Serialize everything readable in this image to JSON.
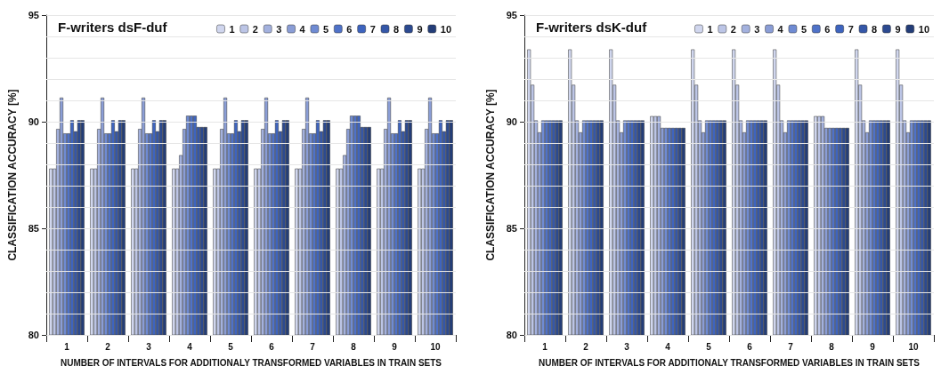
{
  "chart_data": [
    {
      "type": "bar",
      "title": "F-writers dsF-duf",
      "xlabel": "NUMBER OF INTERVALS FOR ADDITIONALY TRANSFORMED VARIABLES IN TRAIN SETS",
      "ylabel": "CLASSIFICATION ACCURACY [%]",
      "categories": [
        "1",
        "2",
        "3",
        "4",
        "5",
        "6",
        "7",
        "8",
        "9",
        "10"
      ],
      "ylim": [
        80,
        95
      ],
      "yticks": [
        80,
        {
          "value": 81,
          "label": null
        },
        {
          "value": 82,
          "label": null
        },
        {
          "value": 83,
          "label": null
        },
        {
          "value": 84,
          "label": null
        },
        85,
        {
          "value": 86,
          "label": null
        },
        {
          "value": 87,
          "label": null
        },
        {
          "value": 88,
          "label": null
        },
        {
          "value": 89,
          "label": null
        },
        90,
        {
          "value": 91,
          "label": null
        },
        {
          "value": 92,
          "label": null
        },
        {
          "value": 93,
          "label": null
        },
        {
          "value": 94,
          "label": null
        },
        95
      ],
      "grid": "y",
      "legend": "top right",
      "series": [
        {
          "name": "1",
          "color": "#d0d6ee",
          "values": [
            87.8,
            87.8,
            87.8,
            87.8,
            87.8,
            87.8,
            87.8,
            87.8,
            87.8,
            87.8
          ]
        },
        {
          "name": "2",
          "color": "#bcc5e6",
          "values": [
            87.8,
            87.8,
            87.8,
            87.8,
            87.8,
            87.8,
            87.8,
            87.8,
            87.8,
            87.8
          ]
        },
        {
          "name": "3",
          "color": "#a3b1de",
          "values": [
            89.66,
            89.66,
            89.66,
            88.43,
            89.66,
            89.66,
            89.66,
            88.43,
            89.66,
            89.66
          ]
        },
        {
          "name": "4",
          "color": "#8a9dd6",
          "values": [
            91.13,
            91.13,
            91.13,
            89.66,
            91.13,
            91.13,
            91.13,
            89.66,
            91.13,
            91.13
          ]
        },
        {
          "name": "5",
          "color": "#6f8bd3",
          "values": [
            89.45,
            89.45,
            89.45,
            90.28,
            89.45,
            89.45,
            89.45,
            90.28,
            89.45,
            89.45
          ]
        },
        {
          "name": "6",
          "color": "#4f72c8",
          "values": [
            89.45,
            89.45,
            89.45,
            90.28,
            89.45,
            89.45,
            89.45,
            90.28,
            89.45,
            89.45
          ]
        },
        {
          "name": "7",
          "color": "#3e64bf",
          "values": [
            90.07,
            90.07,
            90.07,
            90.28,
            90.07,
            90.07,
            90.07,
            90.28,
            90.07,
            90.07
          ]
        },
        {
          "name": "8",
          "color": "#3557a8",
          "values": [
            89.55,
            89.55,
            89.55,
            89.75,
            89.55,
            89.55,
            89.55,
            89.75,
            89.55,
            89.55
          ]
        },
        {
          "name": "9",
          "color": "#2c4a90",
          "values": [
            90.07,
            90.07,
            90.07,
            89.75,
            90.07,
            90.07,
            90.07,
            89.75,
            90.07,
            90.07
          ]
        },
        {
          "name": "10",
          "color": "#233d78",
          "values": [
            90.07,
            90.07,
            90.07,
            89.75,
            90.07,
            90.07,
            90.07,
            89.75,
            90.07,
            90.07
          ]
        }
      ]
    },
    {
      "type": "bar",
      "title": "F-writers dsK-duf",
      "xlabel": "NUMBER OF INTERVALS FOR ADDITIONALY TRANSFORMED VARIABLES IN TRAIN SETS",
      "ylabel": "CLASSIFICATION ACCURACY [%]",
      "categories": [
        "1",
        "2",
        "3",
        "4",
        "5",
        "6",
        "7",
        "8",
        "9",
        "10"
      ],
      "ylim": [
        80,
        95
      ],
      "yticks": [
        80,
        {
          "value": 81,
          "label": null
        },
        {
          "value": 82,
          "label": null
        },
        {
          "value": 83,
          "label": null
        },
        {
          "value": 84,
          "label": null
        },
        85,
        {
          "value": 86,
          "label": null
        },
        {
          "value": 87,
          "label": null
        },
        {
          "value": 88,
          "label": null
        },
        {
          "value": 89,
          "label": null
        },
        90,
        {
          "value": 91,
          "label": null
        },
        {
          "value": 92,
          "label": null
        },
        {
          "value": 93,
          "label": null
        },
        {
          "value": 94,
          "label": null
        },
        95
      ],
      "grid": "y",
      "legend": "top right",
      "series": [
        {
          "name": "1",
          "color": "#d0d6ee",
          "values": [
            93.39,
            93.39,
            93.39,
            90.26,
            93.39,
            93.39,
            93.39,
            90.26,
            93.39,
            93.39
          ]
        },
        {
          "name": "2",
          "color": "#bcc5e6",
          "values": [
            91.73,
            91.73,
            91.73,
            90.26,
            91.73,
            91.73,
            91.73,
            90.26,
            91.73,
            91.73
          ]
        },
        {
          "name": "3",
          "color": "#a3b1de",
          "values": [
            90.06,
            90.06,
            90.06,
            90.26,
            90.06,
            90.06,
            90.06,
            90.26,
            90.06,
            90.06
          ]
        },
        {
          "name": "4",
          "color": "#8a9dd6",
          "values": [
            89.5,
            89.5,
            89.5,
            89.71,
            89.5,
            89.5,
            89.5,
            89.71,
            89.5,
            89.5
          ]
        },
        {
          "name": "5",
          "color": "#6f8bd3",
          "values": [
            90.06,
            90.06,
            90.06,
            89.71,
            90.06,
            90.06,
            90.06,
            89.71,
            90.06,
            90.06
          ]
        },
        {
          "name": "6",
          "color": "#4f72c8",
          "values": [
            90.06,
            90.06,
            90.06,
            89.71,
            90.06,
            90.06,
            90.06,
            89.71,
            90.06,
            90.06
          ]
        },
        {
          "name": "7",
          "color": "#3e64bf",
          "values": [
            90.06,
            90.06,
            90.06,
            89.71,
            90.06,
            90.06,
            90.06,
            89.71,
            90.06,
            90.06
          ]
        },
        {
          "name": "8",
          "color": "#3557a8",
          "values": [
            90.06,
            90.06,
            90.06,
            89.71,
            90.06,
            90.06,
            90.06,
            89.71,
            90.06,
            90.06
          ]
        },
        {
          "name": "9",
          "color": "#2c4a90",
          "values": [
            90.06,
            90.06,
            90.06,
            89.71,
            90.06,
            90.06,
            90.06,
            89.71,
            90.06,
            90.06
          ]
        },
        {
          "name": "10",
          "color": "#233d78",
          "values": [
            90.06,
            90.06,
            90.06,
            89.71,
            90.06,
            90.06,
            90.06,
            89.71,
            90.06,
            90.06
          ]
        }
      ]
    }
  ]
}
